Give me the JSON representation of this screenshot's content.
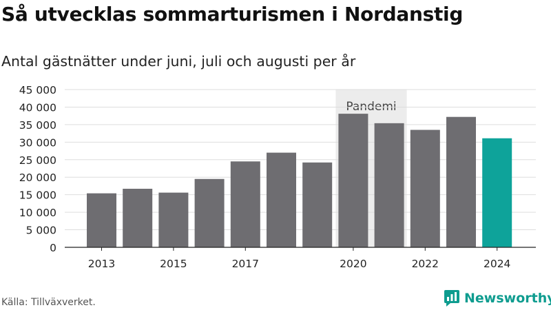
{
  "title": "Så utvecklas sommarturismen i Nordanstig",
  "subtitle": "Antal gästnätter under juni, juli och augusti per år",
  "source": "Källa: Tillväxverket.",
  "brand": "Newsworthy",
  "colors": {
    "bar": "#6e6d71",
    "highlight": "#0ea39a",
    "shade": "#ececec",
    "grid": "#dddddd",
    "brand": "#0e9c8f"
  },
  "chart_data": {
    "type": "bar",
    "categories": [
      "2013",
      "2014",
      "2015",
      "2016",
      "2017",
      "2018",
      "2019",
      "2020",
      "2021",
      "2022",
      "2023",
      "2024"
    ],
    "values": [
      15400,
      16700,
      15600,
      19500,
      24500,
      27000,
      24200,
      38100,
      35400,
      33500,
      37200,
      31100
    ],
    "highlight_index": 11,
    "x_tick_labels": [
      "2013",
      "",
      "2015",
      "",
      "2017",
      "",
      "",
      "2020",
      "",
      "2022",
      "",
      "2024"
    ],
    "y_ticks": [
      0,
      5000,
      10000,
      15000,
      20000,
      25000,
      30000,
      35000,
      40000,
      45000
    ],
    "y_tick_labels": [
      "0",
      "5 000",
      "10 000",
      "15 000",
      "20 000",
      "25 000",
      "30 000",
      "35 000",
      "40 000",
      "45 000"
    ],
    "ylim": [
      0,
      45000
    ],
    "grid": true,
    "annotation": {
      "label": "Pandemi",
      "from": "2020",
      "to": "2021"
    }
  }
}
